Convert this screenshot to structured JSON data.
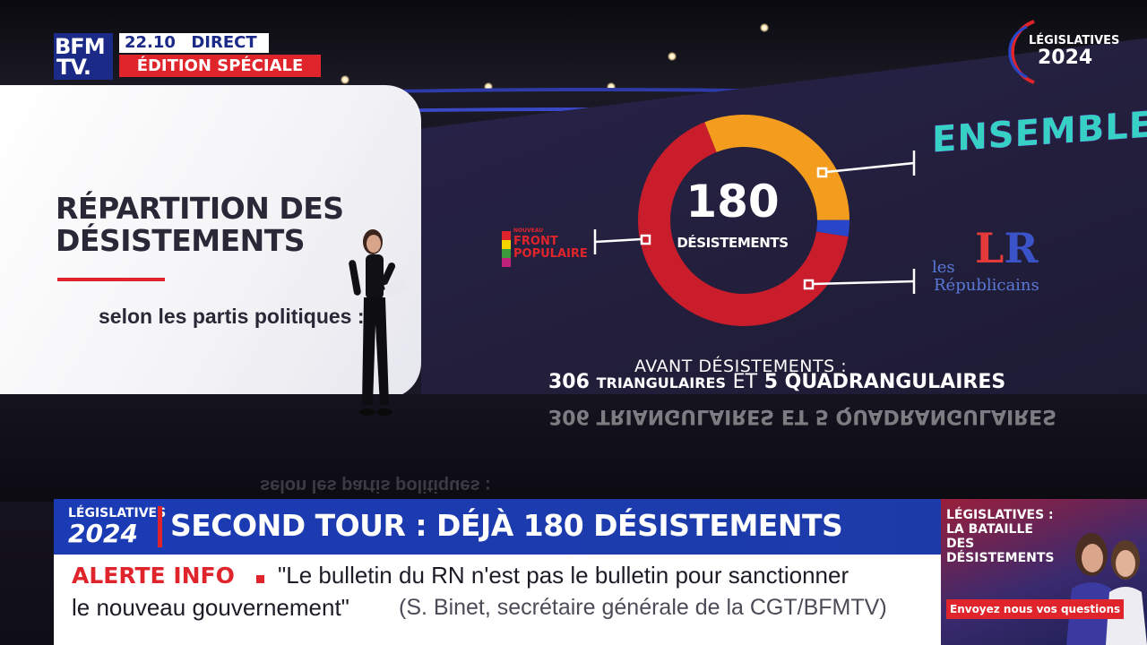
{
  "channel": {
    "logo_line1": "BFM",
    "logo_line2": "TV.",
    "time": "22.10",
    "live_label": "DIRECT",
    "edition_label": "ÉDITION SPÉCIALE"
  },
  "corner_badge": {
    "line1": "LÉGISLATIVES",
    "line2": "2024"
  },
  "left_screen": {
    "title_line1": "RÉPARTITION DES",
    "title_line2": "DÉSISTEMENTS",
    "subtitle": "selon les partis politiques :"
  },
  "donut": {
    "total": "180",
    "total_label": "DÉSISTEMENTS",
    "segments": [
      {
        "party": "NOUVEAU FRONT POPULAIRE",
        "share": 0.665,
        "color": "#c91d2c"
      },
      {
        "party": "ENSEMBLE",
        "share": 0.31,
        "color": "#f39c1e"
      },
      {
        "party": "les Républicains",
        "share": 0.025,
        "color": "#2846c8"
      }
    ]
  },
  "parties": {
    "nfp_small": "NOUVEAU",
    "nfp_line1": "FRONT",
    "nfp_line2": "POPULAIRE",
    "ensemble": "ENSEMBLE",
    "lr_mark_l": "L",
    "lr_mark_r": "R",
    "lr_les": "les",
    "lr_rep": "Républicains"
  },
  "avant": {
    "line1": "AVANT DÉSISTEMENTS :",
    "tri_count": "306",
    "tri_label": "TRIANGULAIRES",
    "et": "ET",
    "quad_count": "5",
    "quad_label": "QUADRANGULAIRES"
  },
  "ticker": {
    "badge_line1": "LÉGISLATIVES",
    "badge_line2": "2024",
    "headline": "SECOND TOUR : DÉJÀ 180 DÉSISTEMENTS",
    "alert_label": "ALERTE INFO",
    "alert_quote_1": "\"Le bulletin du RN n'est pas le bulletin pour sanctionner",
    "alert_quote_2": "le nouveau gouvernement\"",
    "alert_source": "(S. Binet, secrétaire générale de la CGT/BFMTV)"
  },
  "side_panel": {
    "title_line1": "LÉGISLATIVES :",
    "title_line2": "LA BATAILLE DES",
    "title_line3": "DÉSISTEMENTS",
    "cta": "Envoyez nous vos questions"
  },
  "colors": {
    "bfm_blue": "#1b2a86",
    "alert_red": "#e0242b",
    "ensemble_teal": "#36d1c4",
    "lr_blue": "#3b53c8"
  }
}
